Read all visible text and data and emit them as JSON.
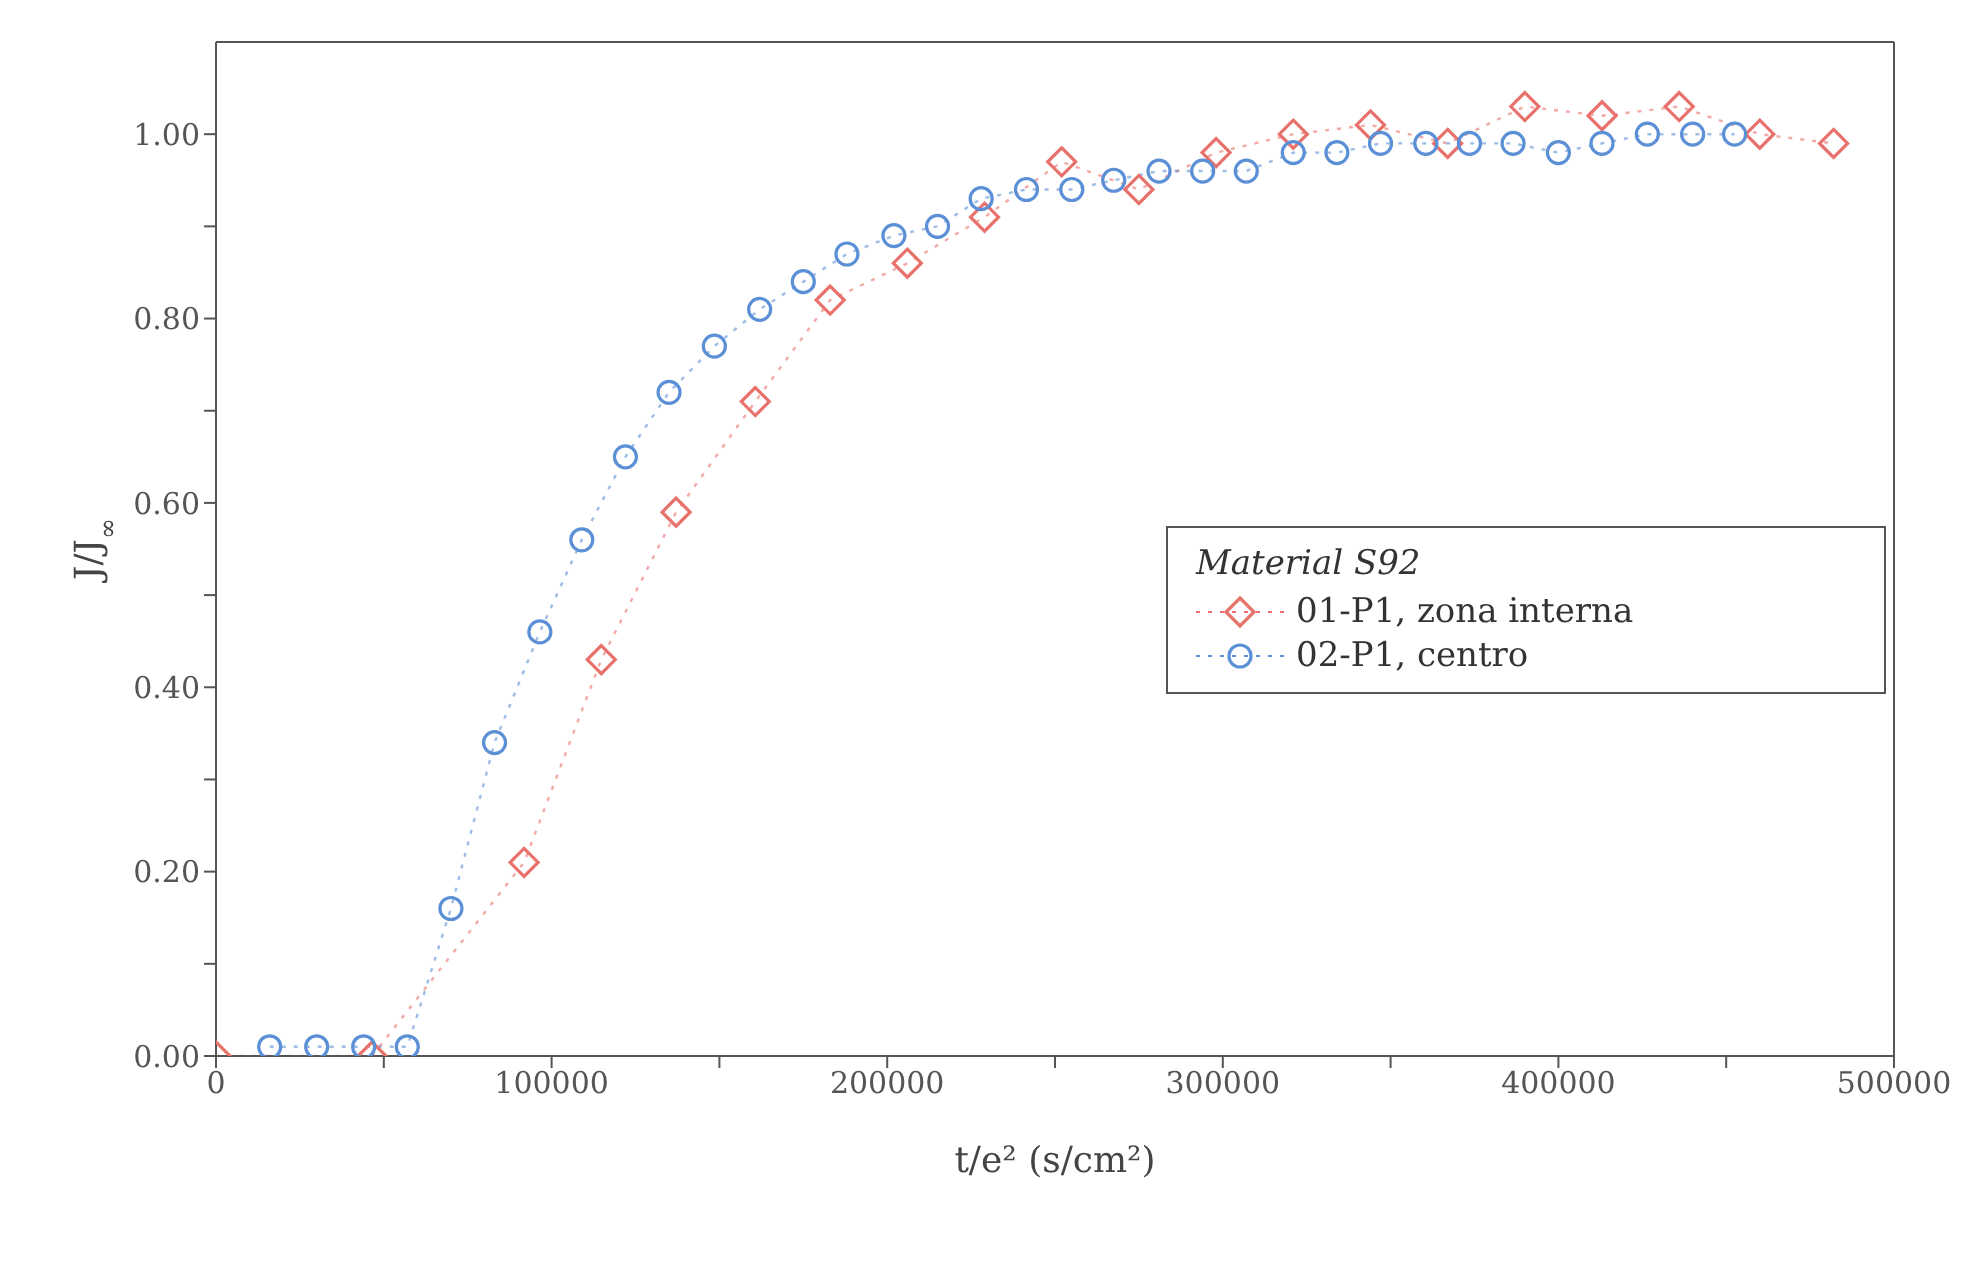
{
  "chart_data": {
    "type": "line",
    "xlabel": "t/e² (s/cm²)",
    "ylabel": "J/J$_{∞}$",
    "legend_title": "Material S92",
    "xlim": [
      0,
      500000
    ],
    "ylim": [
      0,
      1.1
    ],
    "xticks": [
      0,
      {
        "value": 50000,
        "label": null
      },
      100000,
      {
        "value": 150000,
        "label": null
      },
      200000,
      {
        "value": 250000,
        "label": null
      },
      300000,
      {
        "value": 350000,
        "label": null
      },
      400000,
      {
        "value": 450000,
        "label": null
      },
      500000
    ],
    "yticks": [
      {
        "value": 0,
        "label": "0.00"
      },
      {
        "value": 0.1,
        "label": null
      },
      {
        "value": 0.2,
        "label": "0.20"
      },
      {
        "value": 0.3,
        "label": null
      },
      {
        "value": 0.4,
        "label": "0.40"
      },
      {
        "value": 0.5,
        "label": null
      },
      {
        "value": 0.6,
        "label": "0.60"
      },
      {
        "value": 0.7,
        "label": null
      },
      {
        "value": 0.8,
        "label": "0.80"
      },
      {
        "value": 0.9,
        "label": null
      },
      {
        "value": 1,
        "label": "1.00"
      }
    ],
    "grid": false,
    "legend": "right",
    "line_style": "dotted",
    "series": [
      {
        "name": "01-P1, zona interna",
        "color": "#e8716b",
        "marker": "diamond",
        "x": [
          0,
          46500,
          91800,
          114800,
          137100,
          160700,
          183000,
          206000,
          229000,
          252000,
          275000,
          298000,
          321000,
          344000,
          367000,
          390000,
          413000,
          436000,
          460000,
          482000
        ],
        "values": [
          0,
          0,
          0.21,
          0.43,
          0.59,
          0.71,
          0.82,
          0.86,
          0.91,
          0.97,
          0.94,
          0.98,
          1.0,
          1.01,
          0.99,
          1.03,
          1.02,
          1.03,
          1.0,
          0.99
        ]
      },
      {
        "name": "02-P1, centro",
        "color": "#5b8fd6",
        "marker": "circle",
        "x": [
          16000,
          30000,
          44000,
          57000,
          70000,
          83000,
          96500,
          109000,
          122000,
          135000,
          148500,
          162000,
          175000,
          188000,
          202000,
          215000,
          228000,
          241500,
          255000,
          267500,
          281000,
          294000,
          307000,
          321000,
          334000,
          347000,
          360500,
          373500,
          386500,
          400000,
          413000,
          426500,
          440000,
          452500
        ],
        "values": [
          0.01,
          0.01,
          0.01,
          0.01,
          0.16,
          0.34,
          0.46,
          0.56,
          0.65,
          0.72,
          0.77,
          0.81,
          0.84,
          0.87,
          0.89,
          0.9,
          0.93,
          0.94,
          0.94,
          0.95,
          0.96,
          0.96,
          0.96,
          0.98,
          0.98,
          0.99,
          0.99,
          0.99,
          0.99,
          0.98,
          0.99,
          1.0,
          1.0,
          1.0
        ]
      }
    ]
  }
}
